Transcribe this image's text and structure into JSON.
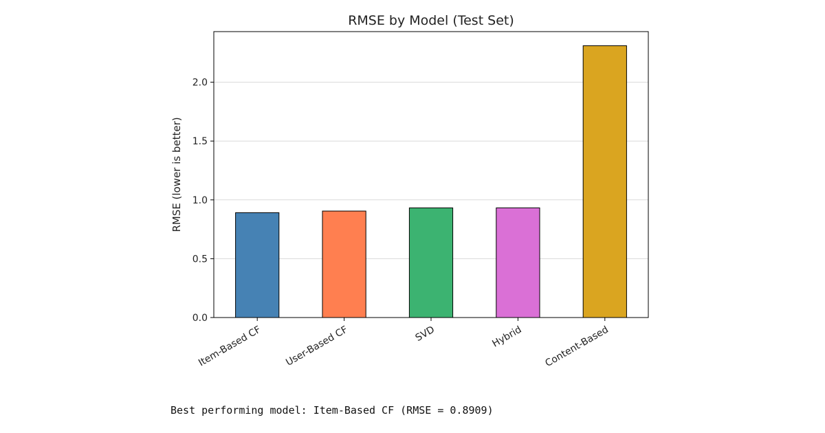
{
  "chart_data": {
    "type": "bar",
    "title": "RMSE by Model (Test Set)",
    "xlabel": "",
    "ylabel": "RMSE (lower is better)",
    "categories": [
      "Item-Based CF",
      "User-Based CF",
      "SVD",
      "Hybrid",
      "Content-Based"
    ],
    "values": [
      0.8909,
      0.905,
      0.932,
      0.932,
      2.31
    ],
    "colors": [
      "#4682B4",
      "#FF7F50",
      "#3CB371",
      "#DA70D6",
      "#DAA520"
    ],
    "ylim": [
      0,
      2.43
    ],
    "yticks": [
      0.0,
      0.5,
      1.0,
      1.5,
      2.0
    ],
    "ytick_labels": [
      "0.0",
      "0.5",
      "1.0",
      "1.5",
      "2.0"
    ],
    "grid": "y",
    "legend": "none"
  },
  "output": {
    "text": "Best performing model: Item-Based CF (RMSE = 0.8909)"
  }
}
